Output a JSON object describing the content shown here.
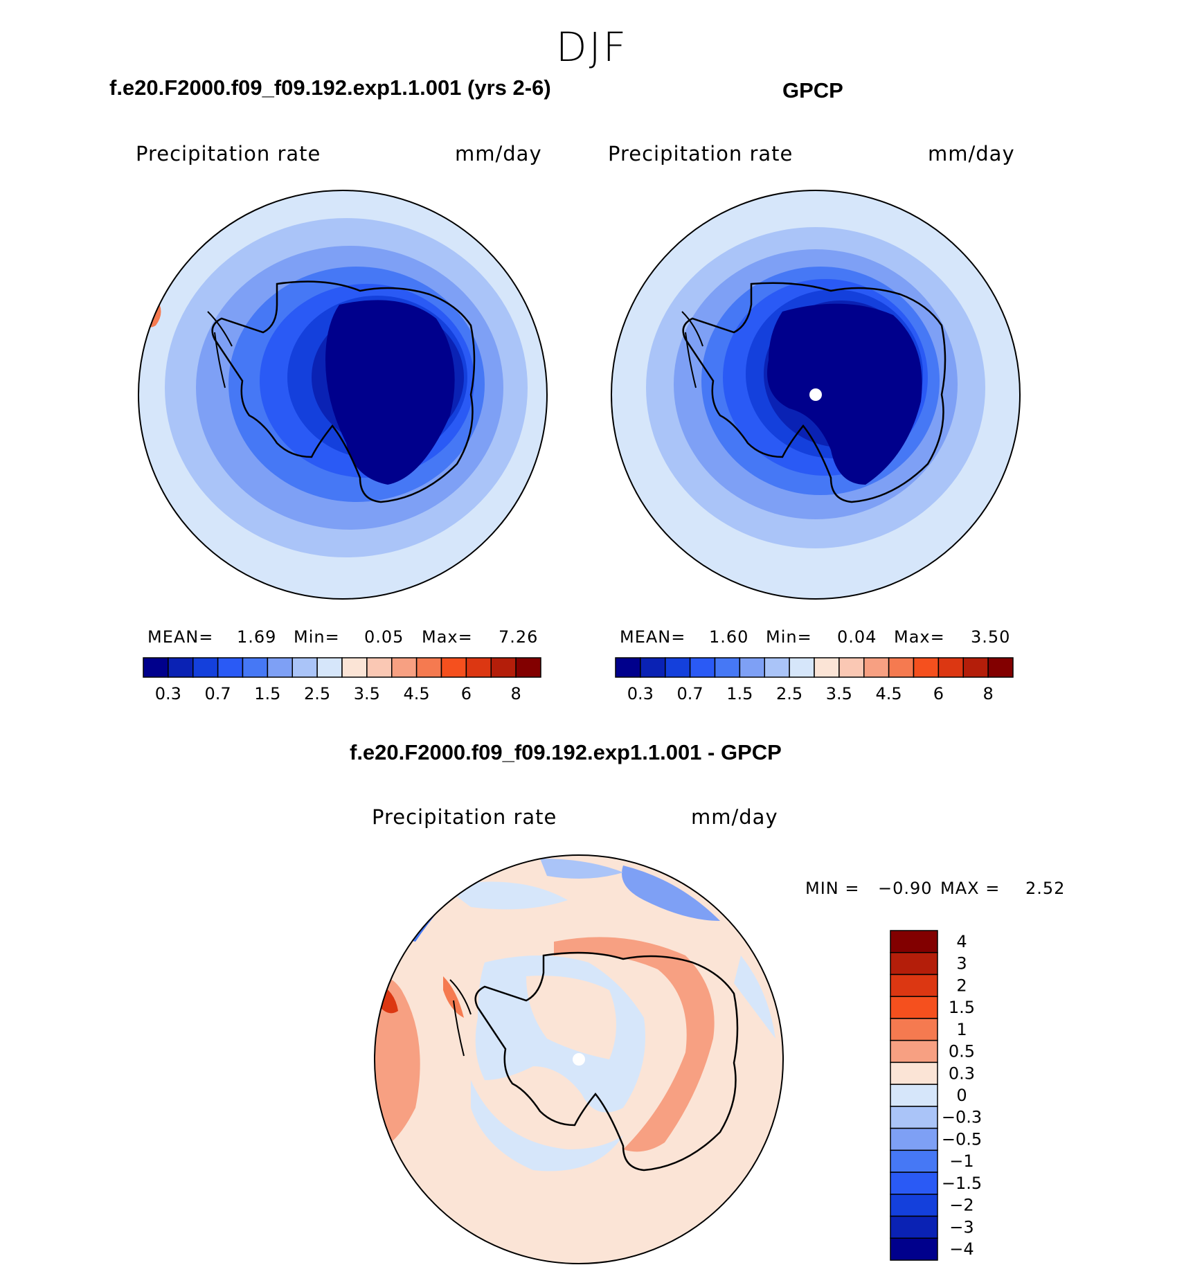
{
  "figure": {
    "title": "DJF",
    "panels": [
      {
        "title": "f.e20.F2000.f09_f09.192.exp1.1.001 (yrs 2-6)",
        "variable": "Precipitation rate",
        "units": "mm/day",
        "stats": {
          "mean_label": "MEAN=",
          "mean": "1.69",
          "min_label": "Min=",
          "min": "0.05",
          "max_label": "Max=",
          "max": "7.26"
        }
      },
      {
        "title": "GPCP",
        "variable": "Precipitation rate",
        "units": "mm/day",
        "stats": {
          "mean_label": "MEAN=",
          "mean": "1.60",
          "min_label": "Min=",
          "min": "0.04",
          "max_label": "Max=",
          "max": "3.50"
        }
      },
      {
        "title": "f.e20.F2000.f09_f09.192.exp1.1.001 - GPCP",
        "variable": "Precipitation rate",
        "units": "mm/day",
        "stats": {
          "min_label": "MIN =",
          "min": "−0.90",
          "max_label": "MAX =",
          "max": "2.52"
        }
      }
    ],
    "horizontal_colorbar": {
      "labels": [
        "0.3",
        "0.7",
        "1.5",
        "2.5",
        "3.5",
        "4.5",
        "6",
        "8"
      ],
      "colors": [
        "#00008c",
        "#0a22b4",
        "#1440dc",
        "#2a5af5",
        "#4678f5",
        "#7ea0f5",
        "#aac4f8",
        "#d6e6fa",
        "#fbe4d6",
        "#fac8b4",
        "#f7a082",
        "#f57a50",
        "#f5501e",
        "#dc3712",
        "#b41e0a",
        "#820000"
      ]
    },
    "vertical_colorbar": {
      "labels": [
        "4",
        "3",
        "2",
        "1.5",
        "1",
        "0.5",
        "0.3",
        "0",
        "−0.3",
        "−0.5",
        "−1",
        "−1.5",
        "−2",
        "−3",
        "−4"
      ],
      "colors": [
        "#820000",
        "#b41e0a",
        "#dc3712",
        "#f5501e",
        "#f57a50",
        "#f7a082",
        "#fbe4d6",
        "#d6e6fa",
        "#aac4f8",
        "#7ea0f5",
        "#4678f5",
        "#2a5af5",
        "#1440dc",
        "#0a22b4",
        "#00008c"
      ]
    }
  }
}
